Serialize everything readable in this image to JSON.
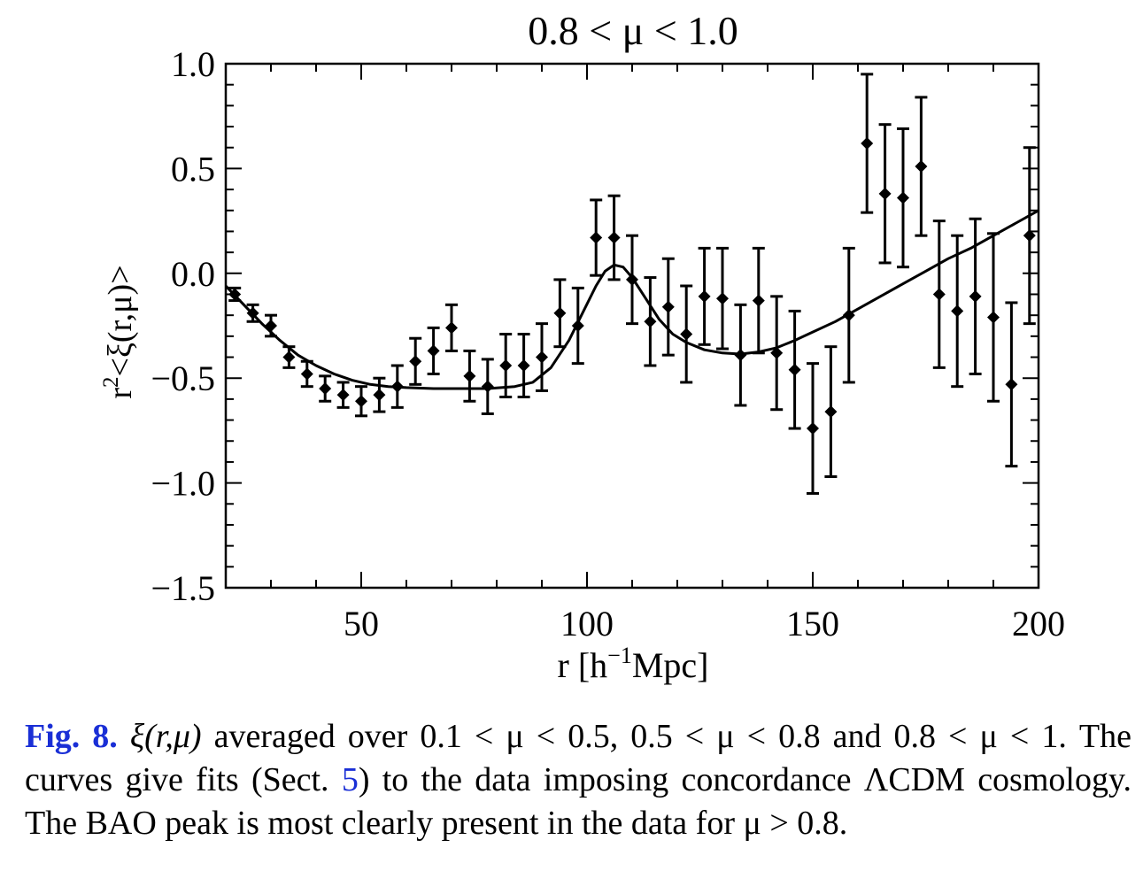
{
  "chart_data": {
    "type": "scatter",
    "title": "0.8 < μ < 1.0",
    "xlabel": "r [h−1Mpc]",
    "xlabel_parts": {
      "base": "r [h",
      "sup": "−1",
      "tail": "Mpc]"
    },
    "ylabel": "r2<ξ(r,μ)>",
    "ylabel_parts": {
      "base": "r",
      "sup": "2",
      "tail": "<ξ(r,μ)>"
    },
    "xlim": [
      20,
      200
    ],
    "ylim": [
      -1.5,
      1.0
    ],
    "x_ticks": [
      50,
      100,
      150,
      200
    ],
    "x_tick_labels": [
      "50",
      "100",
      "150",
      "200"
    ],
    "y_ticks": [
      1.0,
      0.5,
      0.0,
      -0.5,
      -1.0,
      -1.5
    ],
    "y_tick_labels": [
      "1.0",
      "0.5",
      "0.0",
      "−0.5",
      "−1.0",
      "−1.5"
    ],
    "grid": false,
    "series": [
      {
        "kind": "points_with_errorbars",
        "marker": "diamond",
        "color": "#000000",
        "points": [
          {
            "x": 22,
            "y": -0.1,
            "err": 0.03
          },
          {
            "x": 26,
            "y": -0.19,
            "err": 0.04
          },
          {
            "x": 30,
            "y": -0.25,
            "err": 0.05
          },
          {
            "x": 34,
            "y": -0.4,
            "err": 0.05
          },
          {
            "x": 38,
            "y": -0.48,
            "err": 0.06
          },
          {
            "x": 42,
            "y": -0.55,
            "err": 0.06
          },
          {
            "x": 46,
            "y": -0.58,
            "err": 0.06
          },
          {
            "x": 50,
            "y": -0.61,
            "err": 0.07
          },
          {
            "x": 54,
            "y": -0.58,
            "err": 0.08
          },
          {
            "x": 58,
            "y": -0.54,
            "err": 0.1
          },
          {
            "x": 62,
            "y": -0.42,
            "err": 0.11
          },
          {
            "x": 66,
            "y": -0.37,
            "err": 0.11
          },
          {
            "x": 70,
            "y": -0.26,
            "err": 0.11
          },
          {
            "x": 74,
            "y": -0.49,
            "err": 0.12
          },
          {
            "x": 78,
            "y": -0.54,
            "err": 0.13
          },
          {
            "x": 82,
            "y": -0.44,
            "err": 0.15
          },
          {
            "x": 86,
            "y": -0.44,
            "err": 0.15
          },
          {
            "x": 90,
            "y": -0.4,
            "err": 0.16
          },
          {
            "x": 94,
            "y": -0.19,
            "err": 0.16
          },
          {
            "x": 98,
            "y": -0.25,
            "err": 0.18
          },
          {
            "x": 102,
            "y": 0.17,
            "err": 0.18
          },
          {
            "x": 106,
            "y": 0.17,
            "err": 0.2
          },
          {
            "x": 110,
            "y": -0.03,
            "err": 0.21
          },
          {
            "x": 114,
            "y": -0.23,
            "err": 0.21
          },
          {
            "x": 118,
            "y": -0.16,
            "err": 0.23
          },
          {
            "x": 122,
            "y": -0.29,
            "err": 0.23
          },
          {
            "x": 126,
            "y": -0.11,
            "err": 0.23
          },
          {
            "x": 130,
            "y": -0.12,
            "err": 0.24
          },
          {
            "x": 134,
            "y": -0.39,
            "err": 0.24
          },
          {
            "x": 138,
            "y": -0.13,
            "err": 0.25
          },
          {
            "x": 142,
            "y": -0.38,
            "err": 0.27
          },
          {
            "x": 146,
            "y": -0.46,
            "err": 0.28
          },
          {
            "x": 150,
            "y": -0.74,
            "err": 0.31
          },
          {
            "x": 154,
            "y": -0.66,
            "err": 0.31
          },
          {
            "x": 158,
            "y": -0.2,
            "err": 0.32
          },
          {
            "x": 162,
            "y": 0.62,
            "err": 0.33
          },
          {
            "x": 166,
            "y": 0.38,
            "err": 0.33
          },
          {
            "x": 170,
            "y": 0.36,
            "err": 0.33
          },
          {
            "x": 174,
            "y": 0.51,
            "err": 0.33
          },
          {
            "x": 178,
            "y": -0.1,
            "err": 0.35
          },
          {
            "x": 182,
            "y": -0.18,
            "err": 0.36
          },
          {
            "x": 186,
            "y": -0.11,
            "err": 0.37
          },
          {
            "x": 190,
            "y": -0.21,
            "err": 0.4
          },
          {
            "x": 194,
            "y": -0.53,
            "err": 0.39
          },
          {
            "x": 198,
            "y": 0.18,
            "err": 0.42
          }
        ]
      },
      {
        "kind": "line",
        "color": "#000000",
        "x": [
          20,
          24,
          28,
          32,
          36,
          40,
          44,
          48,
          52,
          56,
          60,
          66,
          72,
          78,
          84,
          88,
          92,
          96,
          99,
          102,
          104,
          106,
          108,
          110,
          113,
          116,
          119,
          122,
          126,
          130,
          134,
          138,
          142,
          146,
          150,
          155,
          160,
          165,
          170,
          175,
          180,
          185,
          190,
          195,
          200
        ],
        "y": [
          -0.06,
          -0.15,
          -0.24,
          -0.32,
          -0.39,
          -0.44,
          -0.48,
          -0.51,
          -0.53,
          -0.54,
          -0.545,
          -0.55,
          -0.55,
          -0.55,
          -0.54,
          -0.52,
          -0.45,
          -0.32,
          -0.19,
          -0.06,
          0.01,
          0.04,
          0.03,
          -0.02,
          -0.12,
          -0.22,
          -0.29,
          -0.33,
          -0.365,
          -0.38,
          -0.385,
          -0.375,
          -0.355,
          -0.32,
          -0.28,
          -0.23,
          -0.17,
          -0.11,
          -0.05,
          0.01,
          0.07,
          0.12,
          0.18,
          0.24,
          0.3
        ]
      }
    ]
  },
  "caption": {
    "label": "Fig. 8.",
    "part1": "ξ(r,μ)",
    "part2": " averaged over 0.1 < μ < 0.5, 0.5 < μ < 0.8 and 0.8 < μ < 1. The curves give fits (Sect. ",
    "sect_ref": "5",
    "part3": ") to the data imposing concordance ΛCDM cosmology. The BAO peak is most clearly present in the data for μ > 0.8."
  }
}
